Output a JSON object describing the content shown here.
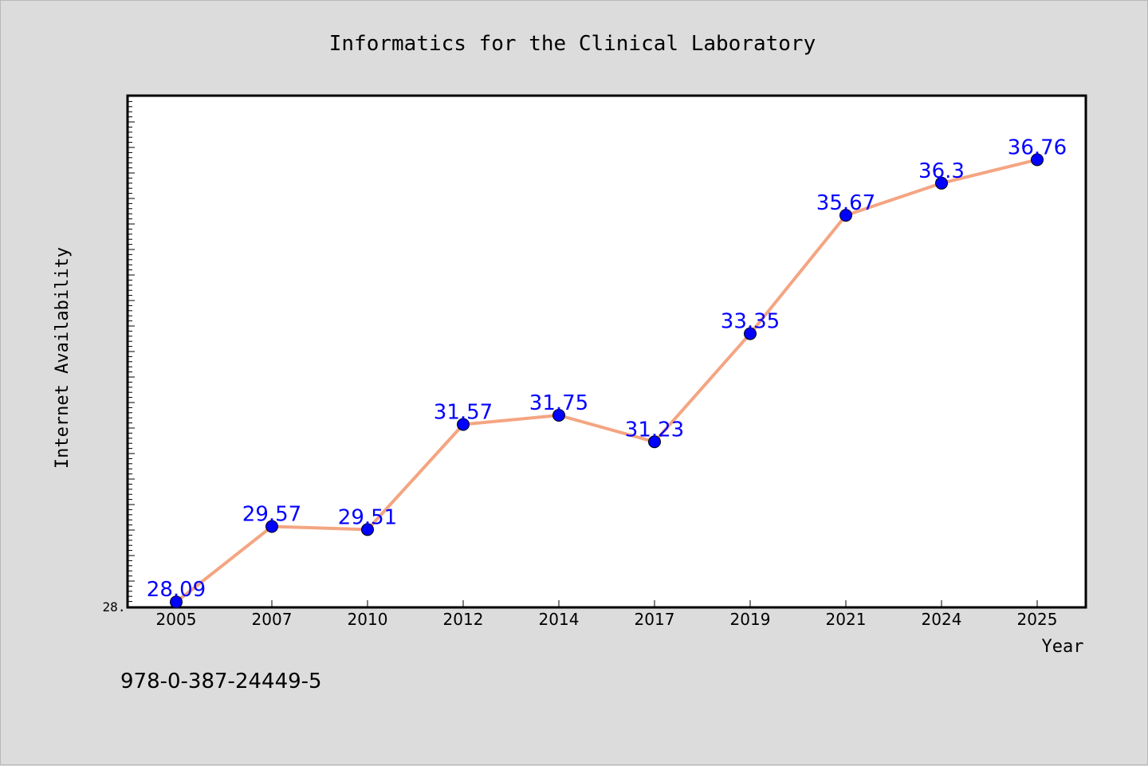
{
  "chart_data": {
    "type": "line",
    "title": "Informatics for the Clinical Laboratory",
    "xlabel": "Year",
    "ylabel": "Internet Availability",
    "categories": [
      "2005",
      "2007",
      "2010",
      "2012",
      "2014",
      "2017",
      "2019",
      "2021",
      "2024",
      "2025"
    ],
    "series": [
      {
        "values": [
          28.09,
          29.57,
          29.51,
          31.57,
          31.75,
          31.23,
          33.35,
          35.67,
          36.3,
          36.76
        ]
      }
    ],
    "data_labels": [
      "28.09",
      "29.57",
      "29.51",
      "31.57",
      "31.75",
      "31.23",
      "33.35",
      "35.67",
      "36.3",
      "36.76"
    ],
    "y_tick_label": "28.",
    "ylim": [
      28.0,
      38.0
    ],
    "grid": false,
    "legend": "none",
    "colors": {
      "line": "#f4a582",
      "marker": "#0000ff",
      "label": "#0000ff",
      "background": "#dcdcdc",
      "plot_area": "#ffffff"
    }
  },
  "footer": {
    "isbn": "978-0-387-24449-5"
  }
}
